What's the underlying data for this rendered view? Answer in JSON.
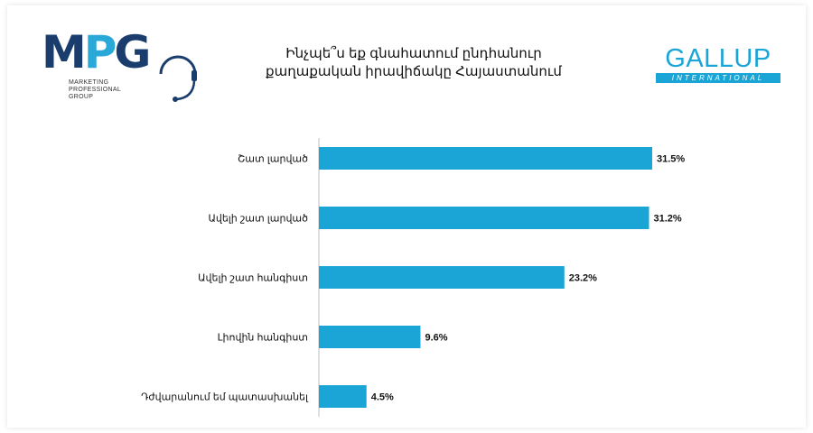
{
  "logos": {
    "mpg": {
      "letters_m": "M",
      "letters_p": "P",
      "letters_g": "G",
      "tagline": "MARKETING\nPROFESSIONAL\nGROUP",
      "colors": {
        "dark": "#1a3d6e",
        "light": "#2aa8d8"
      }
    },
    "gallup": {
      "word": "GALLUP",
      "band": "INTERNATIONAL",
      "color": "#1aa5d6"
    }
  },
  "title": {
    "line1": "Ինչպե՞ս եք գնահատում ընդհանուր",
    "line2": "քաղաքական իրավիճակը Հայաստանում"
  },
  "chart_data": {
    "type": "bar",
    "orientation": "horizontal",
    "categories": [
      "Շատ լարված",
      "Ավելի շատ  լարված",
      "Ավելի շատ հանգիստ",
      "Լիովին հանգիստ",
      "Դժվարանում եմ պատասխանել"
    ],
    "values": [
      31.5,
      31.2,
      23.2,
      9.6,
      4.5
    ],
    "value_labels": [
      "31.5%",
      "31.2%",
      "23.2%",
      "9.6%",
      "4.5%"
    ],
    "unit": "%",
    "xlim": [
      0,
      31.5
    ],
    "bar_color": "#1aa5d6",
    "grid": false,
    "legend": "none"
  }
}
